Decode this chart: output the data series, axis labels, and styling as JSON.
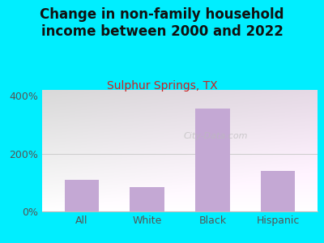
{
  "title": "Change in non-family household\nincome between 2000 and 2022",
  "subtitle": "Sulphur Springs, TX",
  "categories": [
    "All",
    "White",
    "Black",
    "Hispanic"
  ],
  "values": [
    110,
    85,
    355,
    140
  ],
  "bar_color": "#c4a8d4",
  "title_fontsize": 12,
  "subtitle_fontsize": 10,
  "subtitle_color": "#cc2222",
  "title_color": "#111111",
  "background_outer": "#00eeff",
  "yticks": [
    0,
    200,
    400
  ],
  "ytick_labels": [
    "0%",
    "200%",
    "400%"
  ],
  "ylim": [
    0,
    420
  ],
  "watermark": "City-Data.com"
}
